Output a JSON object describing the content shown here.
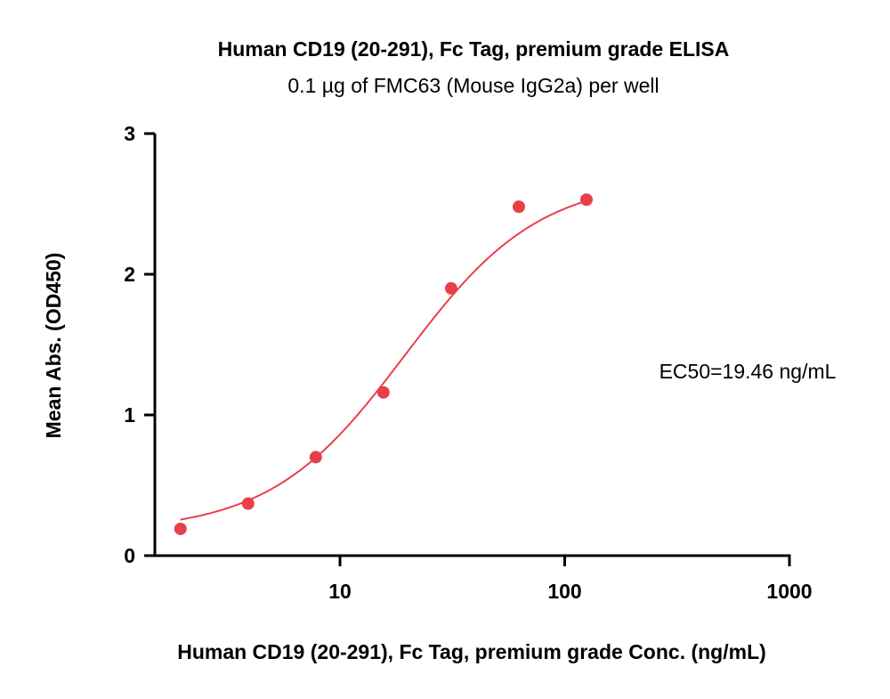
{
  "chart_data": {
    "type": "scatter",
    "title": "Human CD19 (20-291), Fc Tag, premium grade  ELISA",
    "subtitle": "0.1 µg of FMC63 (Mouse IgG2a) per well",
    "xlabel": "Human CD19 (20-291), Fc Tag, premium grade  Conc. (ng/mL)",
    "ylabel": "Mean Abs. (OD450)",
    "x_scale": "log",
    "xlim": [
      1.5,
      1000
    ],
    "ylim": [
      0,
      3
    ],
    "x_ticks": [
      10,
      100,
      1000
    ],
    "x_tick_labels": [
      "10",
      "100",
      "1000"
    ],
    "y_ticks": [
      0,
      1,
      2,
      3
    ],
    "y_tick_labels": [
      "0",
      "1",
      "2",
      "3"
    ],
    "grid": false,
    "legend": "none",
    "series": [
      {
        "x": [
          1.95,
          3.9,
          7.8,
          15.6,
          31.25,
          62.5,
          125
        ],
        "y": [
          0.19,
          0.37,
          0.7,
          1.16,
          1.9,
          2.48,
          2.53
        ],
        "color": "#E8404A"
      }
    ],
    "fit_curve": {
      "model": "4PL",
      "color": "#E8404A",
      "x_range": [
        1.95,
        125
      ],
      "params": {
        "bottom": 0.17,
        "top": 2.68,
        "ec50": 19.46,
        "hill": 1.45
      }
    },
    "annotation": "EC50=19.46 ng/mL"
  }
}
